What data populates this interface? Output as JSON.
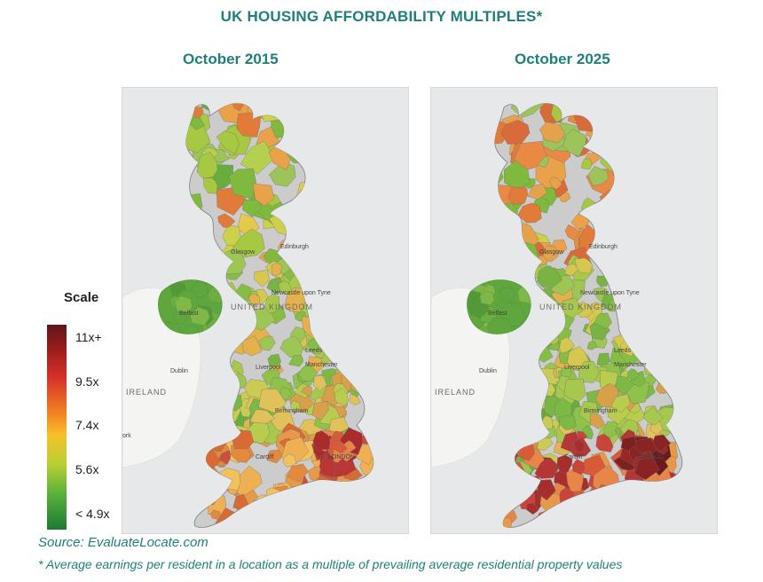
{
  "title": "UK HOUSING AFFORDABILITY MULTIPLES*",
  "maps": [
    {
      "label": "October 2015",
      "places": {
        "edinburgh": "Edinburgh",
        "glasgow": "Glasgow",
        "newcastle": "Newcastle upon Tyne",
        "belfast": "Belfast",
        "uk": "UNITED KINGDOM",
        "dublin": "Dublin",
        "ireland": "IRELAND",
        "leeds": "Leeds",
        "liverpool": "Liverpool",
        "manchester": "Manchester",
        "birmingham": "Birmingham",
        "cardiff": "Cardiff",
        "london": "LONDON",
        "cork": "ork"
      },
      "palette": {
        "scotland": [
          "#7fba3f",
          "#a6c843",
          "#cfd04a",
          "#e6c84c",
          "#68ad3f",
          "#9cc45a",
          "#e9a24a",
          "#e07b3a",
          "#b5cf4e"
        ],
        "north": [
          "#86be45",
          "#a8c84b",
          "#d6c84e",
          "#e3b14e",
          "#79b343",
          "#9ec654"
        ],
        "midlands": [
          "#90c14a",
          "#b9cc4e",
          "#e1c25a",
          "#7dba45",
          "#d9a04b",
          "#a7c84f"
        ],
        "south": [
          "#e38a3f",
          "#efb054",
          "#d86a35",
          "#f1c25b",
          "#c9503a",
          "#e69a49"
        ],
        "london": [
          "#c8403a",
          "#a92b2b",
          "#d75a3a",
          "#e8864a",
          "#bb3535"
        ],
        "wales": [
          "#7ab646",
          "#9cc652",
          "#c9cb52",
          "#68ad3f",
          "#e0b450"
        ],
        "ni": [
          "#5fa63e",
          "#6cae43",
          "#53993a",
          "#7fb748"
        ]
      }
    },
    {
      "label": "October 2025",
      "places": {
        "edinburgh": "Edinburgh",
        "glasgow": "Glasgow",
        "newcastle": "Newcastle upon Tyne",
        "belfast": "Belfast",
        "uk": "UNITED KINGDOM",
        "dublin": "Dublin",
        "ireland": "IRELAND",
        "leeds": "Leeds",
        "liverpool": "Liverpool",
        "manchester": "Manchester",
        "birmingham": "Birmingham",
        "cardiff": "Cardiff",
        "london": "LONDON",
        "cork": ""
      },
      "palette": {
        "scotland": [
          "#7fba3f",
          "#a6c843",
          "#e3a34c",
          "#e88a44",
          "#d96a3a",
          "#9cc45a",
          "#e9a24a",
          "#e07b3a",
          "#cfcf4c"
        ],
        "north": [
          "#86be45",
          "#a8c84b",
          "#d6c84e",
          "#e3b14e",
          "#79b343",
          "#9ec654"
        ],
        "midlands": [
          "#90c14a",
          "#b9cc4e",
          "#e1c25a",
          "#7dba45",
          "#d9a04b",
          "#a7c84f"
        ],
        "south": [
          "#d85a36",
          "#c9443a",
          "#e8864a",
          "#b63535",
          "#e69a49",
          "#a82d2d"
        ],
        "london": [
          "#7c2020",
          "#9a2626",
          "#6a1a1a",
          "#b03030",
          "#8a2424"
        ],
        "wales": [
          "#7ab646",
          "#9cc652",
          "#c9cb52",
          "#68ad3f",
          "#e0b450"
        ],
        "ni": [
          "#5fa63e",
          "#6cae43",
          "#53993a",
          "#7fb748"
        ]
      }
    }
  ],
  "scale": {
    "title": "Scale",
    "ticks": [
      "11x+",
      "9.5x",
      "7.4x",
      "5.6x",
      "< 4.9x"
    ],
    "colors": {
      "high": "#5e1717",
      "mid": "#f7c02a",
      "low": "#1c7a33"
    }
  },
  "source": "Source: EvaluateLocate.com",
  "footnote": "* Average earnings per resident in a location as a multiple of prevailing average residential property values"
}
